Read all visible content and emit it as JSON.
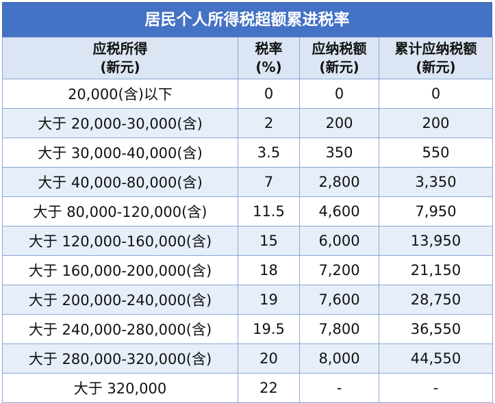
{
  "title": "居民个人所得税超额累进税率",
  "headers": {
    "income": [
      "应税所得",
      "(新元)"
    ],
    "rate": [
      "税率",
      "(%)"
    ],
    "tax": [
      "应纳税额",
      "(新元)"
    ],
    "cumulative": [
      "累计应纳税额",
      "(新元)"
    ]
  },
  "rows": [
    {
      "income": "20,000(含)以下",
      "rate": "0",
      "tax": "0",
      "cumulative": "0"
    },
    {
      "income": "大于 20,000-30,000(含)",
      "rate": "2",
      "tax": "200",
      "cumulative": "200"
    },
    {
      "income": "大于 30,000-40,000(含)",
      "rate": "3.5",
      "tax": "350",
      "cumulative": "550"
    },
    {
      "income": "大于 40,000-80,000(含)",
      "rate": "7",
      "tax": "2,800",
      "cumulative": "3,350"
    },
    {
      "income": "大于 80,000-120,000(含)",
      "rate": "11.5",
      "tax": "4,600",
      "cumulative": "7,950"
    },
    {
      "income": "大于 120,000-160,000(含)",
      "rate": "15",
      "tax": "6,000",
      "cumulative": "13,950"
    },
    {
      "income": "大于 160,000-200,000(含)",
      "rate": "18",
      "tax": "7,200",
      "cumulative": "21,150"
    },
    {
      "income": "大于 200,000-240,000(含)",
      "rate": "19",
      "tax": "7,600",
      "cumulative": "28,750"
    },
    {
      "income": "大于 240,000-280,000(含)",
      "rate": "19.5",
      "tax": "7,800",
      "cumulative": "36,550"
    },
    {
      "income": "大于 280,000-320,000(含)",
      "rate": "20",
      "tax": "8,000",
      "cumulative": "44,550"
    },
    {
      "income": "大于 320,000",
      "rate": "22",
      "tax": "-",
      "cumulative": "-"
    }
  ],
  "colors": {
    "title_bg": "#4472c4",
    "header_bg": "#dbe5f4",
    "row_alt_bg": "#e6eef9",
    "border": "#8aa6d6"
  }
}
